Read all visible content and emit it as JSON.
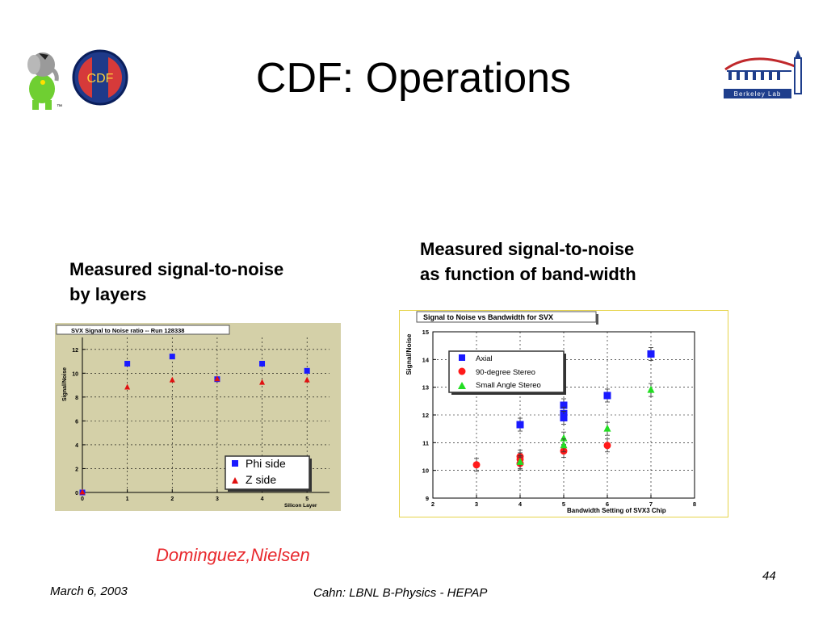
{
  "slide": {
    "title": "CDF: Operations",
    "caption_left": [
      "Measured signal-to-noise",
      "by layers"
    ],
    "caption_right": [
      "Measured signal-to-noise",
      "as function of band-width"
    ],
    "credit": "Dominguez,Nielsen",
    "page_number": "44",
    "date": "March 6, 2003",
    "footer": "Cahn:  LBNL B-Physics - HEPAP",
    "logo_left_mark": "™",
    "logo_left_text": "CDF",
    "logo_right_text": "Berkeley Lab"
  },
  "chart_data": [
    {
      "type": "scatter",
      "title": "SVX Signal to Noise ratio -- Run 128338",
      "xlabel": "Silicon Layer",
      "ylabel": "Signal/Noise",
      "xlim": [
        0,
        5.5
      ],
      "ylim": [
        0,
        13
      ],
      "xticks": [
        "0",
        "1",
        "2",
        "3",
        "4",
        "5"
      ],
      "yticks": [
        "0",
        "2",
        "4",
        "6",
        "8",
        "10",
        "12"
      ],
      "grid": true,
      "legend_position": "bottom-right",
      "background": "#d4d0a8",
      "series": [
        {
          "name": "Phi side",
          "marker": "square",
          "color": "#1a1aff",
          "x": [
            0,
            1,
            2,
            3,
            4,
            5
          ],
          "y": [
            0,
            10.8,
            11.4,
            9.5,
            10.8,
            10.2
          ]
        },
        {
          "name": "Z side",
          "marker": "triangle",
          "color": "#e01010",
          "x": [
            0,
            1,
            2,
            3,
            4,
            5
          ],
          "y": [
            0,
            8.8,
            9.4,
            9.5,
            9.2,
            9.4
          ]
        }
      ]
    },
    {
      "type": "scatter",
      "title": "Signal to Noise vs Bandwidth for SVX",
      "xlabel": "Bandwidth Setting of SVX3 Chip",
      "ylabel": "Signal/Noise",
      "xlim": [
        2,
        8
      ],
      "ylim": [
        9,
        15
      ],
      "xticks": [
        "2",
        "3",
        "4",
        "5",
        "6",
        "7",
        "8"
      ],
      "yticks": [
        "9",
        "10",
        "11",
        "12",
        "13",
        "14",
        "15"
      ],
      "grid": true,
      "legend_position": "top-left",
      "background": "#ffffff",
      "series": [
        {
          "name": "Axial",
          "marker": "square",
          "color": "#1a1aff",
          "x": [
            4,
            5,
            5,
            5,
            6,
            7
          ],
          "y": [
            11.65,
            12.35,
            12.05,
            11.9,
            12.7,
            14.2
          ]
        },
        {
          "name": "90-degree Stereo",
          "marker": "circle",
          "color": "#ff1a1a",
          "x": [
            3,
            4,
            4,
            4,
            5,
            6
          ],
          "y": [
            10.2,
            10.5,
            10.4,
            10.25,
            10.7,
            10.9
          ]
        },
        {
          "name": "Small Angle Stereo",
          "marker": "triangle",
          "color": "#22dd22",
          "x": [
            4,
            5,
            5,
            6,
            7
          ],
          "y": [
            10.3,
            11.15,
            10.9,
            11.5,
            12.9
          ]
        }
      ]
    }
  ]
}
